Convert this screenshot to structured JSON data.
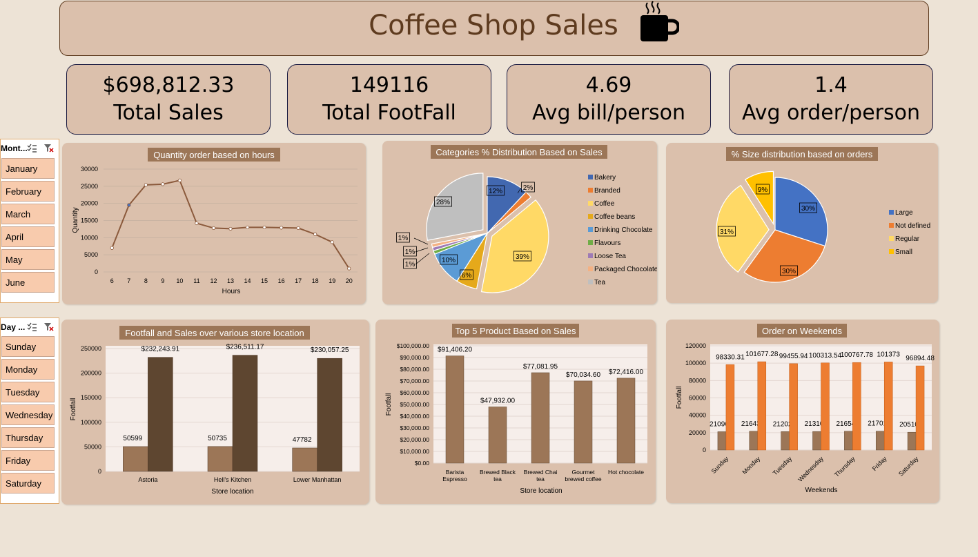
{
  "header": {
    "title": "Coffee Shop Sales"
  },
  "kpis": [
    {
      "value": "$698,812.33",
      "label": "Total Sales"
    },
    {
      "value": "149116",
      "label": "Total FootFall"
    },
    {
      "value": "4.69",
      "label": "Avg bill/person"
    },
    {
      "value": "1.4",
      "label": "Avg order/person"
    }
  ],
  "slicers": {
    "month": {
      "title": "Mont...",
      "items": [
        "January",
        "February",
        "March",
        "April",
        "May",
        "June"
      ]
    },
    "day": {
      "title": "Day ...",
      "items": [
        "Sunday",
        "Monday",
        "Tuesday",
        "Wednesday",
        "Thursday",
        "Friday",
        "Saturday"
      ]
    }
  },
  "colors": {
    "brown_dark": "#5e4630",
    "brown_light": "#9c7657",
    "orange": "#ed7d31",
    "panel": "#dbc0ac"
  },
  "chart_data": [
    {
      "type": "line",
      "title": "Quantity order based on hours",
      "xlabel": "Hours",
      "ylabel": "Quantity",
      "x": [
        6,
        7,
        8,
        9,
        10,
        11,
        12,
        13,
        14,
        15,
        16,
        17,
        18,
        19,
        20
      ],
      "values": [
        7000,
        19500,
        25400,
        25600,
        26700,
        14200,
        12800,
        12600,
        13000,
        13000,
        12900,
        12800,
        11000,
        8700,
        1000
      ],
      "ylim": [
        0,
        30000
      ],
      "yticks": [
        "0",
        "5000",
        "10000",
        "15000",
        "20000",
        "25000",
        "30000"
      ]
    },
    {
      "type": "pie",
      "title": "Categories % Distribution Based on Sales",
      "legend_position": "right",
      "categories": [
        "Bakery",
        "Branded",
        "Coffee",
        "Coffee beans",
        "Drinking Chocolate",
        "Flavours",
        "Loose Tea",
        "Packaged Chocolate",
        "Tea"
      ],
      "values": [
        12,
        2,
        39,
        6,
        10,
        1,
        1,
        1,
        28
      ],
      "labels": [
        "12%",
        "2%",
        "39%",
        "6%",
        "10%",
        "1%",
        "1%",
        "1%",
        "28%"
      ],
      "colors": [
        "#4268b0",
        "#ed7d31",
        "#ffd966",
        "#e5a91b",
        "#5b9bd5",
        "#70ad47",
        "#9e7bb5",
        "#f4b183",
        "#bfbfbf"
      ]
    },
    {
      "type": "pie",
      "title": "% Size distribution based on orders",
      "legend_position": "right",
      "categories": [
        "Large",
        "Not defined",
        "Regular",
        "Small"
      ],
      "values": [
        30,
        30,
        31,
        9
      ],
      "labels": [
        "30%",
        "30%",
        "31%",
        "9%"
      ],
      "colors": [
        "#4472c4",
        "#ed7d31",
        "#ffd966",
        "#ffc000"
      ]
    },
    {
      "type": "bar",
      "title": "Footfall and Sales over various store location",
      "xlabel": "Store location",
      "ylabel": "Footfall",
      "categories": [
        "Astoria",
        "Hell's Kitchen",
        "Lower Manhattan"
      ],
      "series": [
        {
          "values": [
            50599,
            50735,
            47782
          ],
          "labels": [
            "50599",
            "50735",
            "47782"
          ]
        },
        {
          "values": [
            232243.91,
            236511.17,
            230057.25
          ],
          "labels": [
            "$232,243.91",
            "$236,511.17",
            "$230,057.25"
          ]
        }
      ],
      "ylim": [
        0,
        250000
      ],
      "yticks": [
        "0",
        "50000",
        "100000",
        "150000",
        "200000",
        "250000"
      ]
    },
    {
      "type": "bar",
      "title": "Top 5 Product Based on Sales",
      "xlabel": "Store location",
      "ylabel": "Footfall",
      "categories": [
        [
          "Barista",
          "Espresso"
        ],
        [
          "Brewed Black",
          "tea"
        ],
        [
          "Brewed Chai",
          "tea"
        ],
        [
          "Gourmet",
          "brewed coffee"
        ],
        [
          "Hot chocolate"
        ]
      ],
      "values": [
        91406.2,
        47932.0,
        77081.95,
        70034.6,
        72416.0
      ],
      "labels": [
        "$91,406.20",
        "$47,932.00",
        "$77,081.95",
        "$70,034.60",
        "$72,416.00"
      ],
      "ylim": [
        0,
        100000
      ],
      "yticks": [
        "$0.00",
        "$10,000.00",
        "$20,000.00",
        "$30,000.00",
        "$40,000.00",
        "$50,000.00",
        "$60,000.00",
        "$70,000.00",
        "$80,000.00",
        "$90,000.00",
        "$100,000.00"
      ]
    },
    {
      "type": "bar",
      "title": "Order on Weekends",
      "xlabel": "Weekends",
      "ylabel": "Footfall",
      "categories": [
        "Sunday",
        "Monday",
        "Tuesday",
        "Wednesday",
        "Thursday",
        "Friday",
        "Saturday"
      ],
      "series": [
        {
          "values": [
            21096,
            21643,
            21202,
            21310,
            21654,
            21701,
            20510
          ],
          "labels": [
            "21096",
            "21643",
            "21202",
            "21310",
            "21654",
            "21701",
            "20510"
          ]
        },
        {
          "values": [
            98330.31,
            101677.28,
            99455.94,
            100313.54,
            100767.78,
            101373,
            96894.48
          ],
          "labels": [
            "98330.31",
            "101677.28",
            "99455.94",
            "100313.54",
            "100767.78",
            "101373",
            "96894.48"
          ]
        }
      ],
      "ylim": [
        0,
        120000
      ],
      "yticks": [
        "0",
        "20000",
        "40000",
        "60000",
        "80000",
        "100000",
        "120000"
      ]
    }
  ]
}
